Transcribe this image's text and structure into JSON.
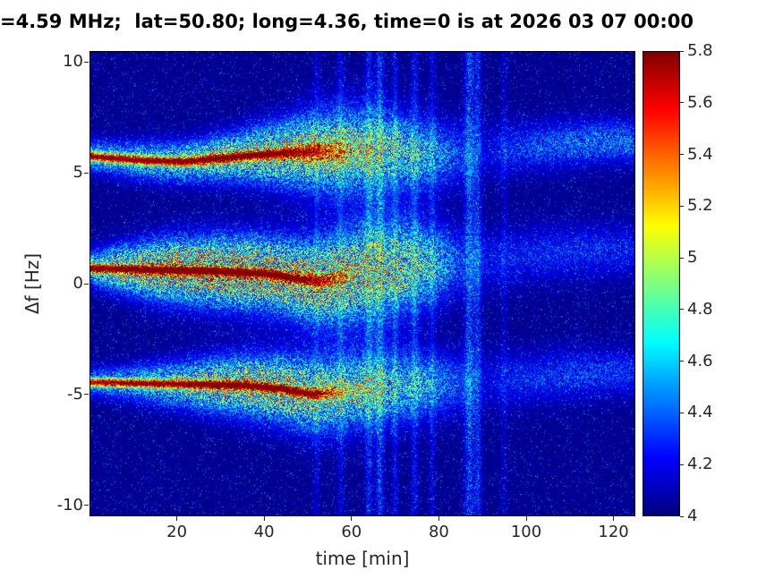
{
  "colors": {
    "figure_background": "#ffffff",
    "title_text": "#000000",
    "tick_text": "#262626",
    "axis_line": "#000000"
  },
  "chart_data": {
    "type": "heatmap",
    "title": "=4.59 MHz;  lat=50.80; long=4.36, time=0 is at 2026 03 07 00:00",
    "xlabel": "time [min]",
    "ylabel": "Δf [Hz]",
    "x_range": [
      0,
      125
    ],
    "y_range": [
      -10.5,
      10.5
    ],
    "x_ticks": [
      20,
      40,
      60,
      80,
      100,
      120
    ],
    "y_ticks": [
      -10,
      -5,
      0,
      5,
      10
    ],
    "grid": false,
    "colormap": "jet",
    "colorbar": {
      "min": 4,
      "max": 5.8,
      "ticks": [
        4,
        4.2,
        4.4,
        4.6,
        4.8,
        5,
        5.2,
        5.4,
        5.6,
        5.8
      ],
      "position": "right"
    },
    "noise": {
      "seed": 1234,
      "base_jitter": 0.05,
      "speckle_prob": 0.11,
      "speckle_amp": 0.55,
      "halo_speckle_min": 0.25,
      "halo_speckle_gain": 1.25,
      "halo_speckle_pow": 1.6,
      "core_speckle_min": 0.8,
      "core_speckle_gain": 0.3
    },
    "bands": [
      {
        "name": "upper-trace",
        "keyframes": [
          {
            "t": 0,
            "c": 5.75,
            "ac": 1.55,
            "sc": 0.13,
            "ah": 0.75,
            "sh": 0.45
          },
          {
            "t": 12,
            "c": 5.55,
            "ac": 1.55,
            "sc": 0.13,
            "ah": 0.85,
            "sh": 0.55
          },
          {
            "t": 22,
            "c": 5.5,
            "ac": 1.6,
            "sc": 0.13,
            "ah": 0.95,
            "sh": 0.6
          },
          {
            "t": 32,
            "c": 5.7,
            "ac": 1.65,
            "sc": 0.14,
            "ah": 1.1,
            "sh": 0.7
          },
          {
            "t": 42,
            "c": 5.85,
            "ac": 1.6,
            "sc": 0.15,
            "ah": 1.15,
            "sh": 0.9
          },
          {
            "t": 50,
            "c": 5.95,
            "ac": 1.2,
            "sc": 0.25,
            "ah": 1.15,
            "sh": 1.15
          },
          {
            "t": 58,
            "c": 6.0,
            "ac": 0.5,
            "sc": 0.4,
            "ah": 1.05,
            "sh": 1.3
          },
          {
            "t": 66,
            "c": 6.0,
            "ac": 0,
            "sc": 0.4,
            "ah": 0.95,
            "sh": 1.25
          },
          {
            "t": 76,
            "c": 5.85,
            "ac": 0,
            "sc": 0.4,
            "ah": 0.8,
            "sh": 1.05
          },
          {
            "t": 83,
            "c": 5.8,
            "ac": 0,
            "sc": 0.4,
            "ah": 0.45,
            "sh": 0.95
          },
          {
            "t": 90,
            "c": 5.9,
            "ac": 0,
            "sc": 0.4,
            "ah": 0.18,
            "sh": 0.9
          },
          {
            "t": 98,
            "c": 6.1,
            "ac": 0,
            "sc": 0.4,
            "ah": 0.35,
            "sh": 0.75
          },
          {
            "t": 108,
            "c": 6.3,
            "ac": 0,
            "sc": 0.4,
            "ah": 0.45,
            "sh": 0.7
          },
          {
            "t": 118,
            "c": 6.45,
            "ac": 0,
            "sc": 0.4,
            "ah": 0.5,
            "sh": 0.65
          },
          {
            "t": 125,
            "c": 6.4,
            "ac": 0,
            "sc": 0.4,
            "ah": 0.45,
            "sh": 0.65
          }
        ]
      },
      {
        "name": "center-trace",
        "keyframes": [
          {
            "t": 0,
            "c": 0.7,
            "ac": 1.6,
            "sc": 0.13,
            "ah": 0.9,
            "sh": 0.5
          },
          {
            "t": 8,
            "c": 0.65,
            "ac": 1.65,
            "sc": 0.13,
            "ah": 1.2,
            "sh": 0.7
          },
          {
            "t": 18,
            "c": 0.6,
            "ac": 1.7,
            "sc": 0.14,
            "ah": 1.45,
            "sh": 0.9
          },
          {
            "t": 30,
            "c": 0.55,
            "ac": 1.7,
            "sc": 0.14,
            "ah": 1.5,
            "sh": 1.0
          },
          {
            "t": 40,
            "c": 0.45,
            "ac": 1.7,
            "sc": 0.14,
            "ah": 1.45,
            "sh": 1.05
          },
          {
            "t": 48,
            "c": 0.2,
            "ac": 1.6,
            "sc": 0.15,
            "ah": 1.35,
            "sh": 1.15
          },
          {
            "t": 54,
            "c": 0.1,
            "ac": 1.0,
            "sc": 0.2,
            "ah": 1.3,
            "sh": 1.3
          },
          {
            "t": 62,
            "c": 0.5,
            "ac": 0,
            "sc": 0.3,
            "ah": 1.15,
            "sh": 1.5
          },
          {
            "t": 72,
            "c": 0.8,
            "ac": 0,
            "sc": 0.3,
            "ah": 1.0,
            "sh": 1.45
          },
          {
            "t": 80,
            "c": 0.9,
            "ac": 0,
            "sc": 0.3,
            "ah": 0.7,
            "sh": 1.2
          },
          {
            "t": 86,
            "c": 1.0,
            "ac": 0,
            "sc": 0.3,
            "ah": 0.3,
            "sh": 1.0
          },
          {
            "t": 93,
            "c": 1.1,
            "ac": 0,
            "sc": 0.3,
            "ah": 0.25,
            "sh": 0.9
          },
          {
            "t": 105,
            "c": 1.4,
            "ac": 0,
            "sc": 0.3,
            "ah": 0.3,
            "sh": 0.85
          },
          {
            "t": 118,
            "c": 1.5,
            "ac": 0,
            "sc": 0.3,
            "ah": 0.3,
            "sh": 0.8
          },
          {
            "t": 125,
            "c": 1.5,
            "ac": 0,
            "sc": 0.3,
            "ah": 0.28,
            "sh": 0.8
          }
        ]
      },
      {
        "name": "lower-trace",
        "keyframes": [
          {
            "t": 0,
            "c": -4.45,
            "ac": 1.5,
            "sc": 0.12,
            "ah": 0.6,
            "sh": 0.4
          },
          {
            "t": 12,
            "c": -4.5,
            "ac": 1.55,
            "sc": 0.12,
            "ah": 0.8,
            "sh": 0.55
          },
          {
            "t": 25,
            "c": -4.55,
            "ac": 1.6,
            "sc": 0.13,
            "ah": 1.05,
            "sh": 0.75
          },
          {
            "t": 36,
            "c": -4.6,
            "ac": 1.65,
            "sc": 0.14,
            "ah": 1.25,
            "sh": 0.9
          },
          {
            "t": 44,
            "c": -4.75,
            "ac": 1.65,
            "sc": 0.14,
            "ah": 1.25,
            "sh": 1.0
          },
          {
            "t": 51,
            "c": -5.0,
            "ac": 1.4,
            "sc": 0.16,
            "ah": 1.15,
            "sh": 1.1
          },
          {
            "t": 58,
            "c": -4.9,
            "ac": 0.4,
            "sc": 0.25,
            "ah": 1.0,
            "sh": 1.15
          },
          {
            "t": 66,
            "c": -4.7,
            "ac": 0,
            "sc": 0.3,
            "ah": 0.9,
            "sh": 1.1
          },
          {
            "t": 76,
            "c": -4.55,
            "ac": 0,
            "sc": 0.3,
            "ah": 0.7,
            "sh": 1.0
          },
          {
            "t": 84,
            "c": -4.5,
            "ac": 0,
            "sc": 0.3,
            "ah": 0.4,
            "sh": 0.95
          },
          {
            "t": 90,
            "c": -4.4,
            "ac": 0,
            "sc": 0.3,
            "ah": 0.18,
            "sh": 0.9
          },
          {
            "t": 98,
            "c": -4.3,
            "ac": 0,
            "sc": 0.3,
            "ah": 0.3,
            "sh": 0.8
          },
          {
            "t": 110,
            "c": -4.1,
            "ac": 0,
            "sc": 0.3,
            "ah": 0.35,
            "sh": 0.75
          },
          {
            "t": 120,
            "c": -4.0,
            "ac": 0,
            "sc": 0.3,
            "ah": 0.35,
            "sh": 0.7
          },
          {
            "t": 125,
            "c": -4.0,
            "ac": 0,
            "sc": 0.3,
            "ah": 0.3,
            "sh": 0.7
          }
        ]
      }
    ],
    "stripes": [
      {
        "t": 52,
        "amp": 0.25,
        "w": 0.5
      },
      {
        "t": 57.5,
        "amp": 0.3,
        "w": 0.5
      },
      {
        "t": 64,
        "amp": 0.45,
        "w": 0.6
      },
      {
        "t": 66.5,
        "amp": 0.55,
        "w": 0.7
      },
      {
        "t": 70,
        "amp": 0.35,
        "w": 0.5
      },
      {
        "t": 74.5,
        "amp": 0.4,
        "w": 0.6
      },
      {
        "t": 78.5,
        "amp": 0.3,
        "w": 0.5
      },
      {
        "t": 87,
        "amp": 0.6,
        "w": 0.8
      },
      {
        "t": 89,
        "amp": 0.45,
        "w": 0.6
      },
      {
        "t": 95,
        "amp": 0.2,
        "w": 0.5
      }
    ]
  }
}
